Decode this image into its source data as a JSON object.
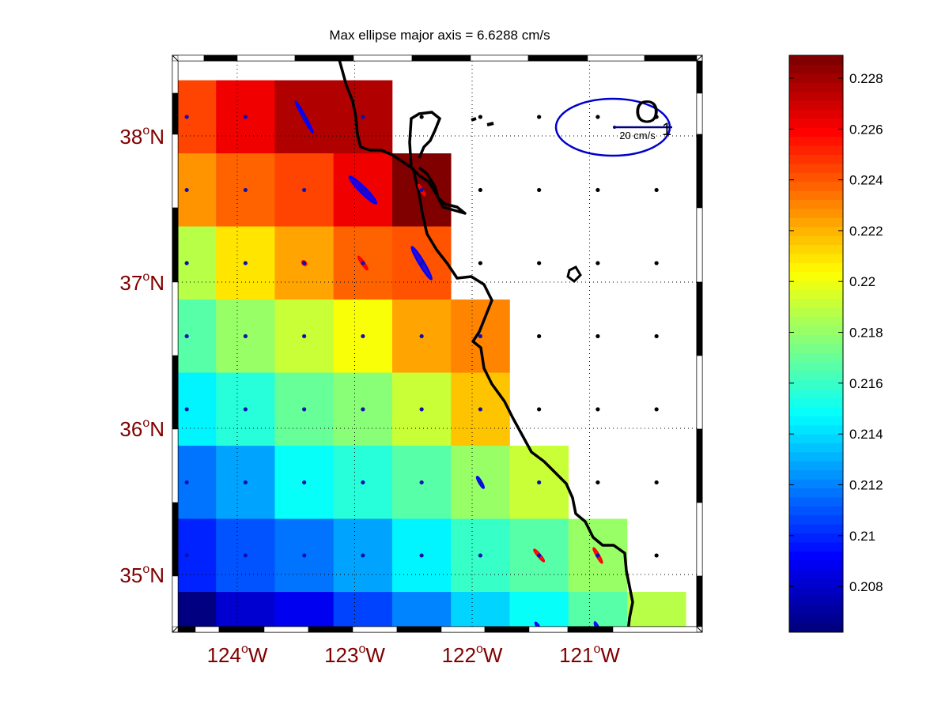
{
  "title": "Max ellipse major axis = 6.6288 cm/s",
  "reference": {
    "label": "20 cm/s",
    "glyph_o": "O",
    "glyph_one": "1",
    "ellipse_color": "#0000cc",
    "vector_color": "#000080"
  },
  "x_ticks": [
    {
      "lon": -124,
      "num": "124",
      "deg": "o",
      "hem": "W"
    },
    {
      "lon": -123,
      "num": "123",
      "deg": "o",
      "hem": "W"
    },
    {
      "lon": -122,
      "num": "122",
      "deg": "o",
      "hem": "W"
    },
    {
      "lon": -121,
      "num": "121",
      "deg": "o",
      "hem": "W"
    }
  ],
  "y_ticks": [
    {
      "lat": 38,
      "num": "38",
      "deg": "o",
      "hem": "N"
    },
    {
      "lat": 37,
      "num": "37",
      "deg": "o",
      "hem": "N"
    },
    {
      "lat": 36,
      "num": "36",
      "deg": "o",
      "hem": "N"
    },
    {
      "lat": 35,
      "num": "35",
      "deg": "o",
      "hem": "N"
    }
  ],
  "colorbar": {
    "range": [
      0.2062,
      0.2289
    ],
    "ticks": [
      {
        "v": 0.208,
        "label": "0.208"
      },
      {
        "v": 0.21,
        "label": "0.21"
      },
      {
        "v": 0.212,
        "label": "0.212"
      },
      {
        "v": 0.214,
        "label": "0.214"
      },
      {
        "v": 0.216,
        "label": "0.216"
      },
      {
        "v": 0.218,
        "label": "0.218"
      },
      {
        "v": 0.22,
        "label": "0.22"
      },
      {
        "v": 0.222,
        "label": "0.222"
      },
      {
        "v": 0.224,
        "label": "0.224"
      },
      {
        "v": 0.226,
        "label": "0.226"
      },
      {
        "v": 0.228,
        "label": "0.228"
      }
    ]
  },
  "colors": {
    "tick_label": "#800000",
    "coast": "#000000",
    "ellipse_blue": "#0000ff",
    "ellipse_red": "#ff0000"
  },
  "chart_data": {
    "type": "heatmap",
    "title": "Max ellipse major axis = 6.6288 cm/s",
    "colormap": "jet",
    "lon_centers": [
      -124.43,
      -123.93,
      -123.43,
      -122.93,
      -122.43,
      -121.93,
      -121.43,
      -120.93,
      -120.43
    ],
    "lat_centers": [
      38.13,
      37.63,
      37.13,
      36.63,
      36.13,
      35.63,
      35.13,
      34.63
    ],
    "values": [
      [
        0.2245,
        0.2262,
        0.2275,
        0.2277,
        null,
        null,
        null,
        null,
        null
      ],
      [
        0.2227,
        0.2236,
        0.2245,
        0.2262,
        0.2287,
        null,
        null,
        null,
        null
      ],
      [
        0.2187,
        0.2208,
        0.2225,
        0.2236,
        0.224,
        null,
        null,
        null,
        null
      ],
      [
        0.2165,
        0.218,
        0.2192,
        0.2202,
        0.2222,
        0.2232,
        null,
        null,
        null
      ],
      [
        0.2147,
        0.2157,
        0.217,
        0.2176,
        0.2192,
        0.2215,
        null,
        null,
        null
      ],
      [
        0.2118,
        0.2128,
        0.2148,
        0.2157,
        0.2168,
        0.218,
        0.219,
        null,
        null
      ],
      [
        0.21,
        0.211,
        0.2117,
        0.2128,
        0.2146,
        0.2158,
        0.2167,
        0.218,
        null
      ],
      [
        0.2065,
        0.208,
        0.209,
        0.2105,
        0.212,
        0.2138,
        0.215,
        0.2167,
        0.2188
      ]
    ],
    "ellipses": [
      {
        "col": 2,
        "row": 0,
        "major": 6.3,
        "minor": 0.5,
        "angle": 61,
        "color": "blue"
      },
      {
        "col": 3,
        "row": 1,
        "major": 6.6,
        "minor": 1.1,
        "angle": 45,
        "color": "blue"
      },
      {
        "col": 4,
        "row": 2,
        "major": 6.6,
        "minor": 0.9,
        "angle": 59,
        "color": "blue"
      },
      {
        "col": 3,
        "row": 2,
        "major": 2.8,
        "minor": 0.5,
        "angle": 55,
        "color": "red"
      },
      {
        "col": 2,
        "row": 2,
        "major": 0.9,
        "minor": 0.6,
        "angle": 50,
        "color": "red"
      },
      {
        "col": 4,
        "row": 1,
        "major": 2.2,
        "minor": 0.3,
        "angle": 60,
        "color": "red"
      },
      {
        "col": 5,
        "row": 5,
        "major": 2.3,
        "minor": 0.5,
        "angle": 60,
        "color": "blue"
      },
      {
        "col": 6,
        "row": 6,
        "major": 2.7,
        "minor": 0.5,
        "angle": 50,
        "color": "red"
      },
      {
        "col": 7,
        "row": 6,
        "major": 3.0,
        "minor": 0.5,
        "angle": 60,
        "color": "red"
      },
      {
        "col": 6,
        "row": 7,
        "major": 2.5,
        "minor": 0.5,
        "angle": 60,
        "color": "blue"
      },
      {
        "col": 7,
        "row": 7,
        "major": 2.5,
        "minor": 0.5,
        "angle": 65,
        "color": "blue"
      }
    ],
    "xlabel": "",
    "ylabel": "",
    "grid": true
  }
}
